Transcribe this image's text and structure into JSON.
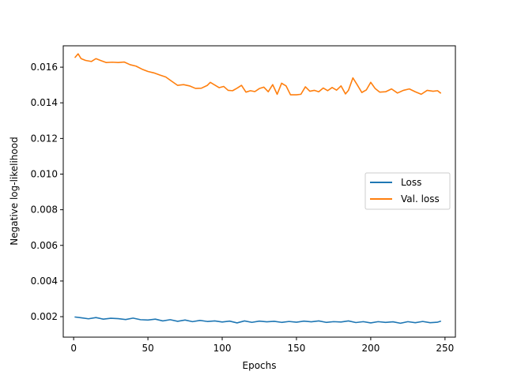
{
  "chart_data": {
    "type": "line",
    "title": "",
    "xlabel": "Epochs",
    "ylabel": "Negative log-likelihood",
    "xlim": [
      -7,
      257
    ],
    "ylim": [
      0.00085,
      0.0172
    ],
    "xticks": [
      0,
      50,
      100,
      150,
      200,
      250
    ],
    "xtick_labels": [
      "0",
      "50",
      "100",
      "150",
      "200",
      "250"
    ],
    "yticks": [
      0.002,
      0.004,
      0.006,
      0.008,
      0.01,
      0.012,
      0.014,
      0.016
    ],
    "ytick_labels": [
      "0.002",
      "0.004",
      "0.006",
      "0.008",
      "0.010",
      "0.012",
      "0.014",
      "0.016"
    ],
    "grid": false,
    "legend_position": "center-right",
    "series": [
      {
        "name": "Loss",
        "color": "#1f77b4",
        "x": [
          1,
          5,
          10,
          15,
          20,
          25,
          30,
          35,
          40,
          45,
          50,
          55,
          60,
          65,
          70,
          75,
          80,
          85,
          90,
          95,
          100,
          105,
          110,
          115,
          120,
          125,
          130,
          135,
          140,
          145,
          150,
          155,
          160,
          165,
          170,
          175,
          180,
          185,
          190,
          195,
          200,
          205,
          210,
          215,
          220,
          225,
          230,
          235,
          240,
          245,
          247
        ],
        "values": [
          0.00198,
          0.00194,
          0.00188,
          0.00195,
          0.00186,
          0.00191,
          0.00189,
          0.00184,
          0.00192,
          0.00183,
          0.00181,
          0.00186,
          0.00176,
          0.00183,
          0.00174,
          0.00181,
          0.00172,
          0.00179,
          0.00173,
          0.00176,
          0.0017,
          0.00175,
          0.00165,
          0.00176,
          0.00168,
          0.00175,
          0.00171,
          0.00174,
          0.00168,
          0.00173,
          0.00169,
          0.00175,
          0.00171,
          0.00176,
          0.00168,
          0.00172,
          0.0017,
          0.00176,
          0.00167,
          0.00172,
          0.00165,
          0.00172,
          0.00168,
          0.00171,
          0.00163,
          0.00172,
          0.00166,
          0.00173,
          0.00166,
          0.00169,
          0.00174
        ]
      },
      {
        "name": "Val. loss",
        "color": "#ff7f0e",
        "x": [
          1,
          3,
          5,
          8,
          12,
          15,
          18,
          22,
          26,
          30,
          34,
          38,
          42,
          46,
          50,
          54,
          58,
          62,
          66,
          70,
          74,
          78,
          82,
          86,
          90,
          92,
          95,
          98,
          101,
          104,
          107,
          110,
          113,
          116,
          119,
          122,
          125,
          128,
          131,
          134,
          137,
          140,
          143,
          146,
          150,
          153,
          156,
          159,
          162,
          165,
          168,
          171,
          174,
          177,
          180,
          183,
          185,
          188,
          191,
          194,
          197,
          200,
          203,
          206,
          210,
          214,
          218,
          222,
          226,
          230,
          234,
          238,
          242,
          245,
          247
        ],
        "values": [
          0.01655,
          0.01675,
          0.01648,
          0.01638,
          0.01632,
          0.01648,
          0.01638,
          0.01626,
          0.01628,
          0.01626,
          0.01629,
          0.01614,
          0.01606,
          0.01589,
          0.01576,
          0.01568,
          0.01556,
          0.01545,
          0.01521,
          0.01498,
          0.01502,
          0.01495,
          0.01481,
          0.01482,
          0.01498,
          0.01515,
          0.015,
          0.01485,
          0.01492,
          0.0147,
          0.01468,
          0.01482,
          0.01498,
          0.0146,
          0.01468,
          0.01463,
          0.0148,
          0.01488,
          0.01462,
          0.01502,
          0.01448,
          0.0151,
          0.01495,
          0.01445,
          0.01445,
          0.01448,
          0.0149,
          0.01465,
          0.0147,
          0.01462,
          0.01483,
          0.01468,
          0.01486,
          0.01471,
          0.01495,
          0.0145,
          0.0147,
          0.0154,
          0.015,
          0.01458,
          0.01472,
          0.01515,
          0.0148,
          0.0146,
          0.01462,
          0.01478,
          0.01455,
          0.0147,
          0.01478,
          0.01462,
          0.01448,
          0.0147,
          0.01465,
          0.01468,
          0.01455
        ]
      }
    ]
  }
}
